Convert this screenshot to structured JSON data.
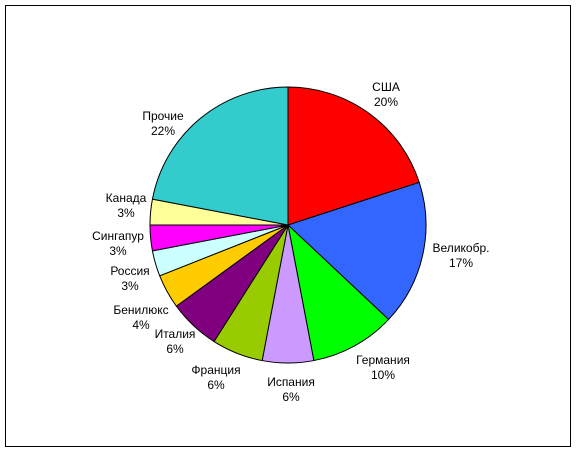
{
  "chart_data": {
    "type": "pie",
    "title": "",
    "start_angle_deg": 0,
    "direction": "clockwise",
    "legend": "none",
    "slices": [
      {
        "label": "США",
        "value": 20,
        "value_label": "20%",
        "color": "#ff0000"
      },
      {
        "label": "Великобр.",
        "value": 17,
        "value_label": "17%",
        "color": "#3366ff"
      },
      {
        "label": "Германия",
        "value": 10,
        "value_label": "10%",
        "color": "#00ff00"
      },
      {
        "label": "Испания",
        "value": 6,
        "value_label": "6%",
        "color": "#cc99ff"
      },
      {
        "label": "Франция",
        "value": 6,
        "value_label": "6%",
        "color": "#99cc00"
      },
      {
        "label": "Италия",
        "value": 6,
        "value_label": "6%",
        "color": "#800080"
      },
      {
        "label": "Бенилюкс",
        "value": 4,
        "value_label": "4%",
        "color": "#ffcc00"
      },
      {
        "label": "Россия",
        "value": 3,
        "value_label": "3%",
        "color": "#ccffff"
      },
      {
        "label": "Сингапур",
        "value": 3,
        "value_label": "3%",
        "color": "#ff00ff"
      },
      {
        "label": "Канада",
        "value": 3,
        "value_label": "3%",
        "color": "#ffff99"
      },
      {
        "label": "Прочие",
        "value": 22,
        "value_label": "22%",
        "color": "#33cccc"
      }
    ]
  }
}
